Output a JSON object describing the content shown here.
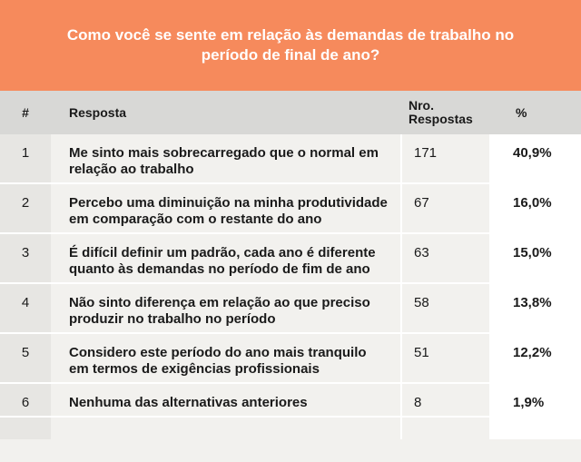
{
  "title": "Como você se sente em relação às demandas de trabalho no período de final de ano?",
  "table": {
    "headers": {
      "index": "#",
      "answer": "Resposta",
      "count": "Nro. Respostas",
      "percent": "%"
    },
    "rows": [
      {
        "index": "1",
        "answer": "Me sinto mais sobrecarregado que o normal em relação ao trabalho",
        "count": "171",
        "percent": "40,9%"
      },
      {
        "index": "2",
        "answer": "Percebo uma diminuição na minha produtividade em comparação com o restante do ano",
        "count": "67",
        "percent": "16,0%"
      },
      {
        "index": "3",
        "answer": "É difícil definir um padrão, cada ano é diferente quanto às demandas no período de fim de ano",
        "count": "63",
        "percent": "15,0%"
      },
      {
        "index": "4",
        "answer": "Não sinto diferença em relação ao que preciso produzir no trabalho no período",
        "count": "58",
        "percent": "13,8%"
      },
      {
        "index": "5",
        "answer": "Considero este período do ano mais tranquilo em termos de exigências profissionais",
        "count": "51",
        "percent": "12,2%"
      },
      {
        "index": "6",
        "answer": "Nenhuma das alternativas anteriores",
        "count": "8",
        "percent": "1,9%"
      }
    ]
  },
  "colors": {
    "header_band": "#f68a5c",
    "table_header": "#d8d8d6",
    "row_bg": "#f2f1ee",
    "index_col_bg": "#e7e6e3"
  }
}
